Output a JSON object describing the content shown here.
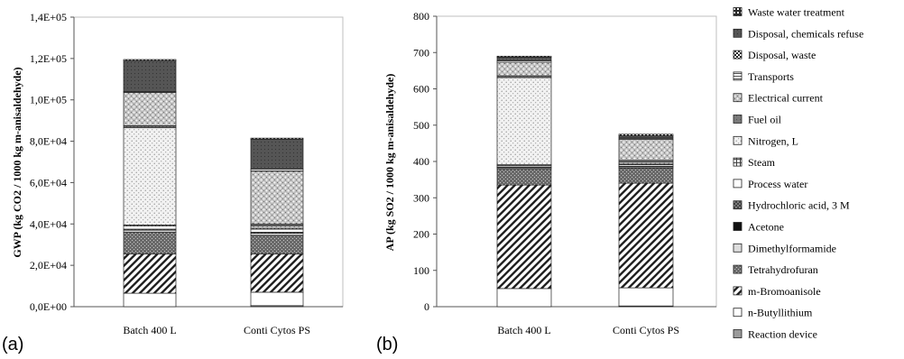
{
  "legend": {
    "title": "",
    "entries": [
      {
        "key": "waste_water",
        "label": "Waste water treatment",
        "fill": "pat-grid-dark"
      },
      {
        "key": "disposal_chem",
        "label": "Disposal, chemicals refuse",
        "fill": "pat-darkgray"
      },
      {
        "key": "disposal_waste",
        "label": "Disposal, waste",
        "fill": "pat-darkcheck"
      },
      {
        "key": "transports",
        "label": "Transports",
        "fill": "pat-hlines"
      },
      {
        "key": "electrical",
        "label": "Electrical current",
        "fill": "pat-brick"
      },
      {
        "key": "fuel_oil",
        "label": "Fuel oil",
        "fill": "pat-medgray"
      },
      {
        "key": "nitrogen",
        "label": "Nitrogen, L",
        "fill": "pat-lightdots"
      },
      {
        "key": "steam",
        "label": "Steam",
        "fill": "pat-grid"
      },
      {
        "key": "process_water",
        "label": "Process water",
        "fill": "pat-white"
      },
      {
        "key": "hcl",
        "label": "Hydrochloric acid, 3 M",
        "fill": "pat-crosshatch"
      },
      {
        "key": "acetone",
        "label": "Acetone",
        "fill": "pat-black"
      },
      {
        "key": "dmf",
        "label": "Dimethylformamide",
        "fill": "pat-lightgray"
      },
      {
        "key": "thf",
        "label": "Tetrahydrofuran",
        "fill": "pat-darkdots"
      },
      {
        "key": "bromoanisole",
        "label": "m-Bromoanisole",
        "fill": "pat-diag"
      },
      {
        "key": "butyllithium",
        "label": "n-Butyllithium",
        "fill": "pat-white"
      },
      {
        "key": "reaction_device",
        "label": "Reaction device",
        "fill": "pat-gray"
      }
    ]
  },
  "chart_data": [
    {
      "panel_label": "(a)",
      "type": "bar",
      "stacked": true,
      "ylabel": "GWP (kg CO2 / 1000 kg m-anisaldehyde)",
      "ylim": [
        0,
        140000
      ],
      "yticks": [
        0,
        20000,
        40000,
        60000,
        80000,
        100000,
        120000,
        140000
      ],
      "ytick_labels": [
        "0,0E+00",
        "2,0E+04",
        "4,0E+04",
        "6,0E+04",
        "8,0E+04",
        "1,0E+05",
        "1,2E+05",
        "1,4E+05"
      ],
      "categories": [
        "Batch 400 L",
        "Conti Cytos PS"
      ],
      "grid": false,
      "series": [
        {
          "key": "reaction_device",
          "values": [
            0,
            500
          ]
        },
        {
          "key": "butyllithium",
          "values": [
            6500,
            6500
          ]
        },
        {
          "key": "bromoanisole",
          "values": [
            19000,
            18500
          ]
        },
        {
          "key": "thf",
          "values": [
            10500,
            9000
          ]
        },
        {
          "key": "dmf",
          "values": [
            1000,
            1000
          ]
        },
        {
          "key": "acetone",
          "values": [
            0,
            0
          ]
        },
        {
          "key": "hcl",
          "values": [
            500,
            500
          ]
        },
        {
          "key": "process_water",
          "values": [
            1500,
            1500
          ]
        },
        {
          "key": "steam",
          "values": [
            500,
            500
          ]
        },
        {
          "key": "nitrogen",
          "values": [
            47000,
            1000
          ]
        },
        {
          "key": "fuel_oil",
          "values": [
            1000,
            1000
          ]
        },
        {
          "key": "electrical",
          "values": [
            16000,
            25500
          ]
        },
        {
          "key": "transports",
          "values": [
            500,
            1000
          ]
        },
        {
          "key": "disposal_waste",
          "values": [
            0,
            0
          ]
        },
        {
          "key": "disposal_chem",
          "values": [
            15000,
            14500
          ]
        },
        {
          "key": "waste_water",
          "values": [
            500,
            500
          ]
        }
      ]
    },
    {
      "panel_label": "(b)",
      "type": "bar",
      "stacked": true,
      "ylabel": "AP (kg SO2 / 1000 kg m-anisaldehyde)",
      "ylim": [
        0,
        800
      ],
      "yticks": [
        0,
        100,
        200,
        300,
        400,
        500,
        600,
        700,
        800
      ],
      "ytick_labels": [
        "0",
        "100",
        "200",
        "300",
        "400",
        "500",
        "600",
        "700",
        "800"
      ],
      "categories": [
        "Batch 400 L",
        "Conti Cytos PS"
      ],
      "grid": false,
      "series": [
        {
          "key": "reaction_device",
          "values": [
            0,
            2
          ]
        },
        {
          "key": "butyllithium",
          "values": [
            50,
            50
          ]
        },
        {
          "key": "bromoanisole",
          "values": [
            285,
            288
          ]
        },
        {
          "key": "thf",
          "values": [
            45,
            42
          ]
        },
        {
          "key": "dmf",
          "values": [
            3,
            3
          ]
        },
        {
          "key": "acetone",
          "values": [
            0,
            0
          ]
        },
        {
          "key": "hcl",
          "values": [
            2,
            2
          ]
        },
        {
          "key": "process_water",
          "values": [
            4,
            4
          ]
        },
        {
          "key": "steam",
          "values": [
            2,
            2
          ]
        },
        {
          "key": "nitrogen",
          "values": [
            240,
            5
          ]
        },
        {
          "key": "fuel_oil",
          "values": [
            5,
            5
          ]
        },
        {
          "key": "electrical",
          "values": [
            37,
            58
          ]
        },
        {
          "key": "transports",
          "values": [
            4,
            4
          ]
        },
        {
          "key": "disposal_waste",
          "values": [
            0,
            0
          ]
        },
        {
          "key": "disposal_chem",
          "values": [
            10,
            6
          ]
        },
        {
          "key": "waste_water",
          "values": [
            3,
            4
          ]
        }
      ]
    }
  ]
}
